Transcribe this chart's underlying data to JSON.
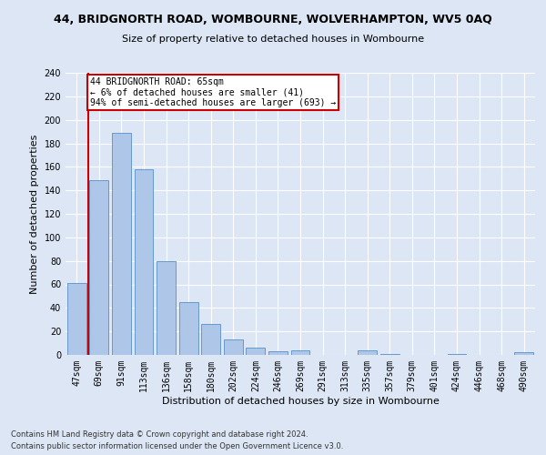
{
  "title": "44, BRIDGNORTH ROAD, WOMBOURNE, WOLVERHAMPTON, WV5 0AQ",
  "subtitle": "Size of property relative to detached houses in Wombourne",
  "xlabel": "Distribution of detached houses by size in Wombourne",
  "ylabel": "Number of detached properties",
  "categories": [
    "47sqm",
    "69sqm",
    "91sqm",
    "113sqm",
    "136sqm",
    "158sqm",
    "180sqm",
    "202sqm",
    "224sqm",
    "246sqm",
    "269sqm",
    "291sqm",
    "313sqm",
    "335sqm",
    "357sqm",
    "379sqm",
    "401sqm",
    "424sqm",
    "446sqm",
    "468sqm",
    "490sqm"
  ],
  "values": [
    61,
    149,
    189,
    158,
    80,
    45,
    26,
    13,
    6,
    3,
    4,
    0,
    0,
    4,
    1,
    0,
    0,
    1,
    0,
    0,
    2
  ],
  "bar_color": "#aec6e8",
  "bar_edge_color": "#6699cc",
  "annotation_text_line1": "44 BRIDGNORTH ROAD: 65sqm",
  "annotation_text_line2": "← 6% of detached houses are smaller (41)",
  "annotation_text_line3": "94% of semi-detached houses are larger (693) →",
  "annotation_box_color": "#ffffff",
  "annotation_border_color": "#cc0000",
  "vline_color": "#cc0000",
  "ylim": [
    0,
    240
  ],
  "yticks": [
    0,
    20,
    40,
    60,
    80,
    100,
    120,
    140,
    160,
    180,
    200,
    220,
    240
  ],
  "footer_line1": "Contains HM Land Registry data © Crown copyright and database right 2024.",
  "footer_line2": "Contains public sector information licensed under the Open Government Licence v3.0.",
  "bg_color": "#dce6f5",
  "plot_bg_color": "#dce6f5",
  "title_fontsize": 9,
  "subtitle_fontsize": 8,
  "ylabel_fontsize": 8,
  "xlabel_fontsize": 8,
  "tick_fontsize": 7,
  "footer_fontsize": 6
}
